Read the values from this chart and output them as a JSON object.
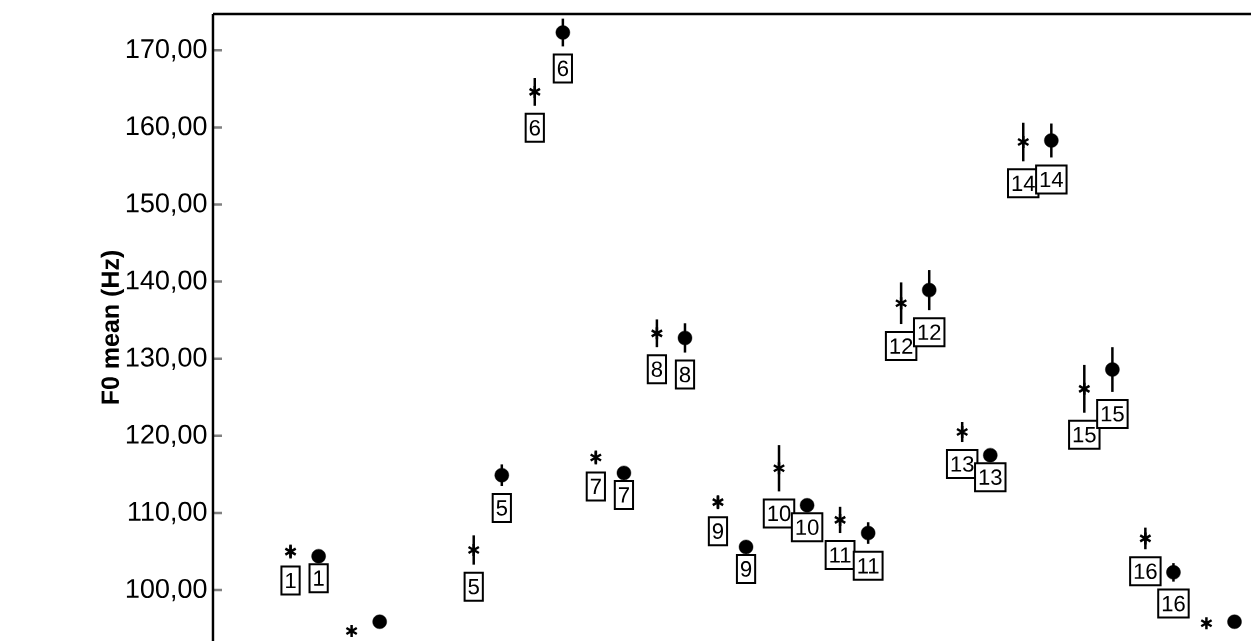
{
  "chart_data": {
    "type": "scatter",
    "ylabel": "F0 mean (Hz)",
    "categories": [
      null,
      null,
      null,
      null,
      null,
      null,
      null,
      null,
      null,
      null,
      null,
      null,
      null,
      null,
      null,
      null,
      null
    ],
    "series": [
      {
        "color": "#000000",
        "marker": "cross",
        "values": [
          null,
          105.0,
          94.7,
          null,
          105.2,
          164.6,
          117.2,
          133.3,
          111.4,
          115.8,
          109.1,
          137.2,
          120.5,
          158.1,
          126.1,
          106.7,
          95.7
        ],
        "errors": [
          null,
          0.9,
          null,
          null,
          1.9,
          1.8,
          0.9,
          1.8,
          0.9,
          3.0,
          1.7,
          2.7,
          1.3,
          2.5,
          3.1,
          1.4,
          null
        ]
      },
      {
        "color": "#000000",
        "marker": "circle",
        "values": [
          null,
          104.4,
          95.9,
          null,
          114.9,
          172.3,
          115.2,
          132.7,
          105.6,
          111.0,
          107.4,
          138.9,
          117.5,
          158.3,
          128.6,
          102.3,
          95.9
        ],
        "errors": [
          null,
          null,
          null,
          null,
          1.4,
          1.8,
          null,
          1.9,
          null,
          null,
          1.4,
          2.6,
          null,
          2.2,
          2.9,
          1.2,
          null
        ]
      }
    ],
    "annotations": [
      {
        "text": "1",
        "y": 105.0
      },
      {
        "text": "5",
        "y": 105.2
      },
      {
        "text": "6",
        "y": 164.6
      },
      {
        "text": "7",
        "y": 117.2
      },
      {
        "text": "8",
        "y": 133.3
      },
      {
        "text": "9",
        "y": 111.4
      },
      {
        "text": "10",
        "y": 115.8
      },
      {
        "text": "11",
        "y": 109.1
      },
      {
        "text": "12",
        "y": 137.2
      },
      {
        "text": "13",
        "y": 120.5
      },
      {
        "text": "14",
        "y": 158.1
      },
      {
        "text": "15",
        "y": 126.1
      },
      {
        "text": "16",
        "y": 106.7
      },
      {
        "text": "1",
        "y": 104.4
      },
      {
        "text": "5",
        "y": 114.9
      },
      {
        "text": "6",
        "y": 172.3
      },
      {
        "text": "7",
        "y": 115.2
      },
      {
        "text": "8",
        "y": 132.7
      },
      {
        "text": "9",
        "y": 105.6
      },
      {
        "text": "10",
        "y": 111.0
      },
      {
        "text": "11",
        "y": 107.4
      },
      {
        "text": "12",
        "y": 138.9
      },
      {
        "text": "13",
        "y": 117.5
      },
      {
        "text": "14",
        "y": 158.3
      },
      {
        "text": "15",
        "y": 128.6
      },
      {
        "text": "16",
        "y": 102.3
      }
    ],
    "ylim": [
      93.4,
      174.7
    ],
    "yticks": [
      {
        "value": 100,
        "label": "100,00"
      },
      {
        "value": 110,
        "label": "110,00"
      },
      {
        "value": 120,
        "label": "120,00"
      },
      {
        "value": 130,
        "label": "130,00"
      },
      {
        "value": 140,
        "label": "140,00"
      },
      {
        "value": 150,
        "label": "150,00"
      },
      {
        "value": 160,
        "label": "160,00"
      },
      {
        "value": 170,
        "label": "170,00"
      }
    ],
    "grid": false
  }
}
